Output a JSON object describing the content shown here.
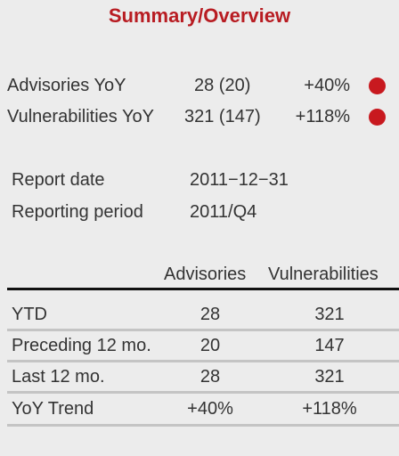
{
  "title": "Summary/Overview",
  "kpis": [
    {
      "label": "Advisories YoY",
      "value": "28 (20)",
      "change": "+40%",
      "status_color": "#c8191f"
    },
    {
      "label": "Vulnerabilities YoY",
      "value": "321 (147)",
      "change": "+118%",
      "status_color": "#c8191f"
    }
  ],
  "report": {
    "date_label": "Report date",
    "date_value": "2011−12−31",
    "period_label": "Reporting period",
    "period_value": "2011/Q4"
  },
  "table": {
    "columns": [
      "Advisories",
      "Vulnerabilities"
    ],
    "rows": [
      {
        "label": "YTD",
        "advisories": "28",
        "vulnerabilities": "321"
      },
      {
        "label": "Preceding 12 mo.",
        "advisories": "20",
        "vulnerabilities": "147"
      },
      {
        "label": "Last 12 mo.",
        "advisories": "28",
        "vulnerabilities": "321"
      },
      {
        "label": "YoY Trend",
        "advisories": "+40%",
        "vulnerabilities": "+118%"
      }
    ]
  }
}
